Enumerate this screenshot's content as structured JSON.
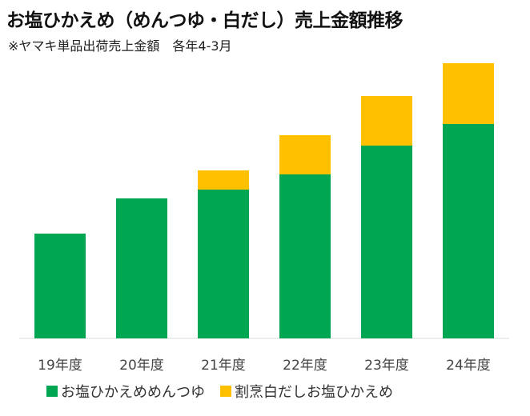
{
  "chart_data": {
    "type": "bar",
    "stacked": true,
    "title": "お塩ひかえめ（めんつゆ・白だし）売上金額推移",
    "subtitle": "※ヤマキ単品出荷売上金額　各年4-3月",
    "xlabel": "",
    "ylabel": "",
    "ylim": [
      0,
      350
    ],
    "grid": false,
    "legend_position": "bottom",
    "categories": [
      "19年度",
      "20年度",
      "21年度",
      "22年度",
      "23年度",
      "24年度"
    ],
    "series": [
      {
        "name": "お塩ひかえめめんつゆ",
        "color": "#00A651",
        "values": [
          131,
          175,
          186,
          205,
          241,
          268
        ]
      },
      {
        "name": "割烹白だしお塩ひかえめ",
        "color": "#FFC000",
        "values": [
          0,
          0,
          24,
          49,
          62,
          76
        ]
      }
    ]
  }
}
